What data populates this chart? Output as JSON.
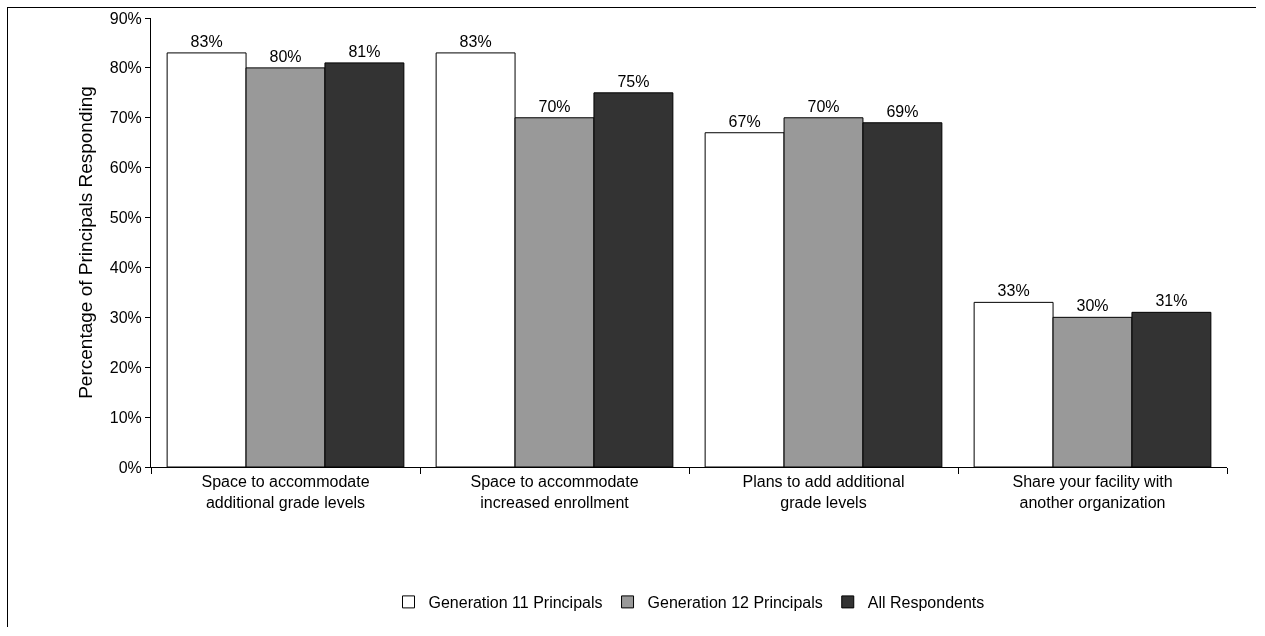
{
  "chart_data": {
    "type": "bar",
    "ylabel": "Percentage of Principals Responding",
    "categories": [
      "Space to accommodate additional grade levels",
      "Space to accommodate increased enrollment",
      "Plans to add additional grade levels",
      "Share your facility with another organization"
    ],
    "series": [
      {
        "name": "Generation 11 Principals",
        "color": "#ffffff",
        "values": [
          83,
          83,
          67,
          33
        ],
        "value_labels": [
          "83%",
          "83%",
          "67%",
          "33%"
        ]
      },
      {
        "name": "Generation 12 Principals",
        "color": "#999999",
        "values": [
          80,
          70,
          70,
          30
        ],
        "value_labels": [
          "80%",
          "70%",
          "70%",
          "30%"
        ]
      },
      {
        "name": "All Respondents",
        "color": "#333333",
        "values": [
          81,
          75,
          69,
          31
        ],
        "value_labels": [
          "81%",
          "75%",
          "69%",
          "31%"
        ]
      }
    ],
    "ylim": [
      0,
      90
    ],
    "yticks": [
      {
        "value": 0,
        "label": "0%"
      },
      {
        "value": 10,
        "label": "10%"
      },
      {
        "value": 20,
        "label": "20%"
      },
      {
        "value": 30,
        "label": "30%"
      },
      {
        "value": 40,
        "label": "40%"
      },
      {
        "value": 50,
        "label": "50%"
      },
      {
        "value": 60,
        "label": "60%"
      },
      {
        "value": 70,
        "label": "70%"
      },
      {
        "value": 80,
        "label": "80%"
      },
      {
        "value": 90,
        "label": "90%"
      }
    ],
    "grid": false,
    "legend": "bottom"
  }
}
